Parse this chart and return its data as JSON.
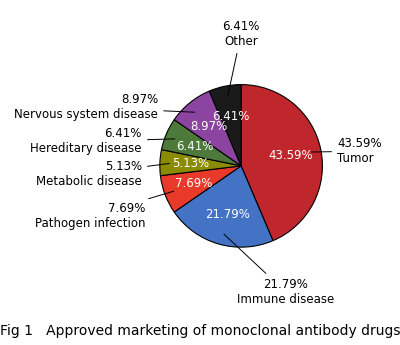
{
  "slices": [
    {
      "label": "Tumor",
      "pct": 43.59,
      "color": "#C0272D",
      "text_color": "white",
      "label_side": "right"
    },
    {
      "label": "Immune disease",
      "pct": 21.79,
      "color": "#4472C4",
      "text_color": "white",
      "label_side": "right"
    },
    {
      "label": "Pathogen infection",
      "pct": 7.69,
      "color": "#E8392A",
      "text_color": "white",
      "label_side": "left"
    },
    {
      "label": "Metabolic disease",
      "pct": 5.13,
      "color": "#8B8B00",
      "text_color": "white",
      "label_side": "left"
    },
    {
      "label": "Hereditary disease",
      "pct": 6.41,
      "color": "#4D7A3A",
      "text_color": "white",
      "label_side": "left"
    },
    {
      "label": "Nervous system disease",
      "pct": 8.97,
      "color": "#8B44A0",
      "text_color": "white",
      "label_side": "left"
    },
    {
      "label": "Other",
      "pct": 6.41,
      "color": "#1A1A1A",
      "text_color": "white",
      "label_side": "top"
    }
  ],
  "start_angle": 90,
  "fig_caption": "Fig 1   Approved marketing of monoclonal antibody drugs",
  "caption_fontsize": 10,
  "inner_label_fontsize": 8.5,
  "outer_label_fontsize": 8.5,
  "background_color": "#ffffff"
}
